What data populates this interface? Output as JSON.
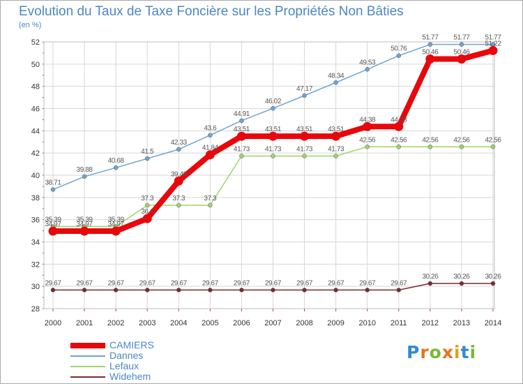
{
  "title": "Evolution du Taux de Taxe Foncière sur les Propriétés Non Bâties",
  "unit": "(en %)",
  "logo": {
    "text": "Proxiti",
    "letter_colors": [
      "#2e8bd6",
      "#e8731c",
      "#7cb82f",
      "#e8731c",
      "#d9a51c",
      "#2e8bd6",
      "#7cb82f"
    ]
  },
  "chart_data": {
    "type": "line",
    "title": "Evolution du Taux de Taxe Foncière sur les Propriétés Non Bâties",
    "ylabel": "(en %)",
    "xlabel": "",
    "x": [
      "2000",
      "2001",
      "2002",
      "2003",
      "2004",
      "2005",
      "2006",
      "2007",
      "2008",
      "2009",
      "2010",
      "2011",
      "2012",
      "2013",
      "2014"
    ],
    "ylim": [
      28,
      52
    ],
    "yticks": [
      28,
      30,
      32,
      34,
      36,
      38,
      40,
      42,
      44,
      46,
      48,
      50,
      52
    ],
    "grid": true,
    "legend_position": "bottom-left",
    "series": [
      {
        "name": "CAMIERS",
        "color": "#e8070a",
        "emphasis": true,
        "values": [
          34.97,
          34.97,
          34.97,
          36.1,
          39.48,
          41.84,
          43.51,
          43.51,
          43.51,
          43.51,
          44.38,
          44.38,
          50.46,
          50.46,
          51.22
        ],
        "labels": [
          "34.97",
          "34.97",
          "34.97",
          "36.1",
          "39.48",
          "41.84",
          "43.51",
          "43.51",
          "43.51",
          "43.51",
          "44.38",
          "44.38",
          "50.46",
          "50.46",
          "51.22"
        ]
      },
      {
        "name": "Dannes",
        "color": "#6fa5d2",
        "values": [
          38.71,
          39.88,
          40.68,
          41.5,
          42.33,
          43.6,
          44.91,
          46.02,
          47.17,
          48.34,
          49.53,
          50.76,
          51.77,
          51.77,
          51.77
        ],
        "labels": [
          "38.71",
          "39.88",
          "40.68",
          "41.5",
          "42.33",
          "43.6",
          "44.91",
          "46.02",
          "47.17",
          "48.34",
          "49.53",
          "50.76",
          "51.77",
          "51.77",
          "51.77"
        ]
      },
      {
        "name": "Lefaux",
        "color": "#9ed56a",
        "values": [
          35.39,
          35.39,
          35.39,
          37.3,
          37.3,
          37.3,
          41.73,
          41.73,
          41.73,
          41.73,
          42.56,
          42.56,
          42.56,
          42.56,
          42.56
        ],
        "labels": [
          "35.39",
          "35.39",
          "35.39",
          "37.3",
          "37.3",
          "37.3",
          "41.73",
          "41.73",
          "41.73",
          "41.73",
          "42.56",
          "42.56",
          "42.56",
          "42.56",
          "42.56"
        ]
      },
      {
        "name": "Widehem",
        "color": "#7a2b2b",
        "values": [
          29.67,
          29.67,
          29.67,
          29.67,
          29.67,
          29.67,
          29.67,
          29.67,
          29.67,
          29.67,
          29.67,
          29.67,
          30.26,
          30.26,
          30.26
        ],
        "labels": [
          "29.67",
          "29.67",
          "29.67",
          "29.67",
          "29.67",
          "29.67",
          "29.67",
          "29.67",
          "29.67",
          "29.67",
          "29.67",
          "29.67",
          "30.26",
          "30.26",
          "30.26"
        ]
      }
    ]
  }
}
